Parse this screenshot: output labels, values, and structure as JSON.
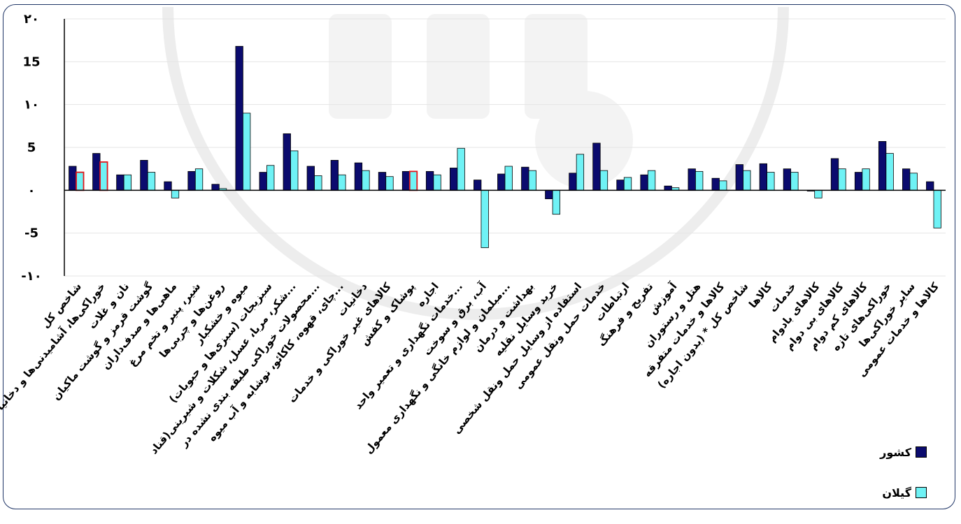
{
  "chart_data": {
    "type": "bar",
    "ylim": [
      -10,
      20
    ],
    "yticks": [
      -10,
      -5,
      0,
      5,
      10,
      15,
      20
    ],
    "ytick_labels": [
      "-۱۰",
      "-5",
      "۰",
      "5",
      "۱۰",
      "15",
      "۲۰"
    ],
    "grid": true,
    "legend_position": "bottom-right",
    "categories": [
      "شاخص کل",
      "خوراکی‌ها، آشامیدنی‌ها و دخانیات",
      "نان و غلات",
      "گوشت قرمز و گوشت ماکیان",
      "ماهی‌ها و صدف‌داران",
      "شیر، پنیر و تخم مرغ",
      "روغن‌ها و چربی‌ها",
      "میوه و خشکبار",
      "سبزیجات (سبزی‌ها و حبوبات)",
      "شکر، مربا، عسل، شکلات و شیرینی(قناد...",
      "محصولات خوراکی طبقه بندی نشده در...",
      "چای، قهوه، کاکائو، نوشابه و آب میوه...",
      "دخانیات",
      "کالاهای غیر خوراکی و خدمات",
      "پوشاک و کفش",
      "اجاره",
      "خدمات نگهداری و تعمیر واحد...",
      "آب، برق و سوخت",
      "مبلمان و لوازم خانگی و نگهداری معمول...",
      "بهداشت و درمان",
      "خرید وسایل نقلیه",
      "استفاده از وسایل حمل ونقل شخصی",
      "خدمات حمل ونقل عمومی",
      "ارتباطات",
      "تفریح و فرهنگ",
      "آموزش",
      "هتل و رستوران",
      "کالاها و خدمات متفرقه",
      "شاخص کل * (بدون اجاره)",
      "کالاها",
      "خدمات",
      "کالاهای بادوام",
      "کالاهای بی دوام",
      "کالاهای کم دوام",
      "خوراکی‌های تازه",
      "سایر خوراکی‌ها",
      "کالاها و خدمات عمومی"
    ],
    "series": [
      {
        "name": "کشور",
        "color": "#0b0b6e",
        "values": [
          2.8,
          4.3,
          1.8,
          3.5,
          1.0,
          2.2,
          0.7,
          16.8,
          2.1,
          6.6,
          2.8,
          3.5,
          3.2,
          2.1,
          2.2,
          2.2,
          2.6,
          1.2,
          1.9,
          2.7,
          -1.0,
          2.0,
          5.5,
          1.2,
          1.8,
          0.5,
          2.5,
          1.4,
          3.0,
          3.1,
          2.5,
          -0.1,
          3.7,
          2.1,
          5.7,
          2.5,
          1.0
        ]
      },
      {
        "name": "گیلان",
        "color": "#6ff2f5",
        "values": [
          2.1,
          3.3,
          1.8,
          2.1,
          -0.9,
          2.5,
          0.2,
          9.0,
          2.9,
          4.6,
          1.7,
          1.8,
          2.3,
          1.6,
          2.2,
          1.8,
          4.9,
          -6.7,
          2.8,
          2.3,
          -2.8,
          4.2,
          2.3,
          1.5,
          2.3,
          0.3,
          2.2,
          1.1,
          2.3,
          2.1,
          2.1,
          -0.9,
          2.5,
          2.5,
          4.3,
          2.0,
          -4.4
        ]
      }
    ],
    "highlight_indices": [
      0,
      1,
      14
    ],
    "highlight_color": "#e0161b"
  }
}
